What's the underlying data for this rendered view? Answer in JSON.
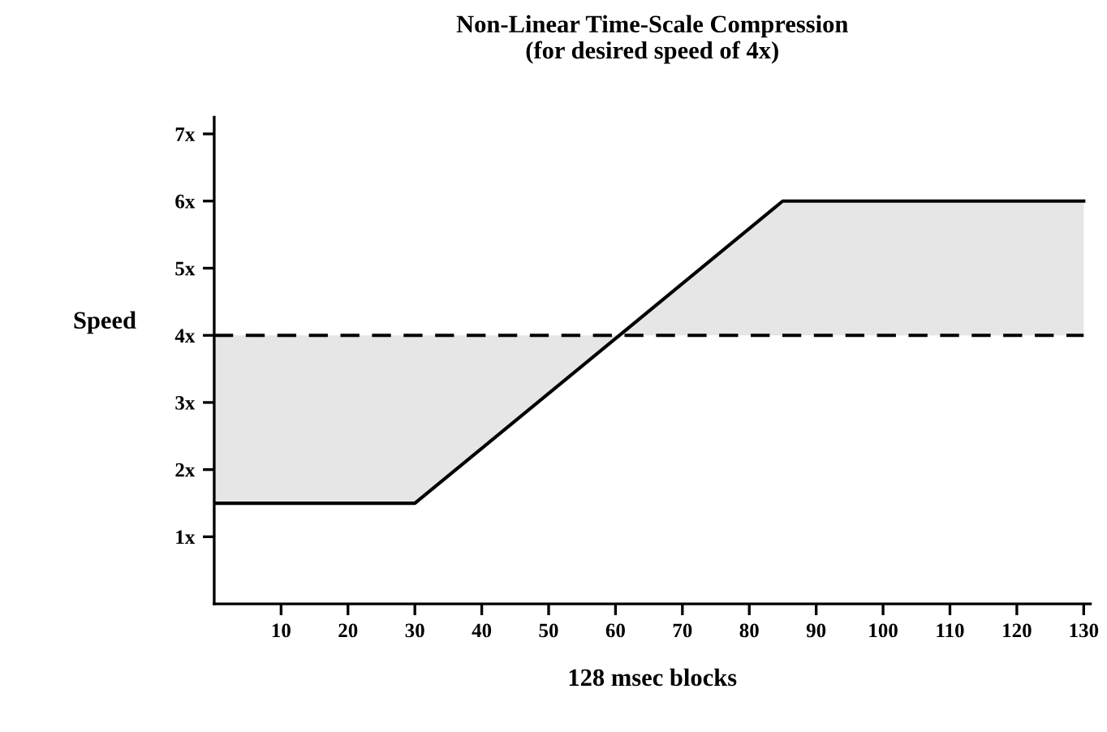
{
  "chart_data": {
    "type": "line",
    "title": "Non-Linear Time-Scale Compression\n(for desired speed of 4x)",
    "xlabel": "128 msec blocks",
    "ylabel": "Speed",
    "series": [
      {
        "color": "#000000",
        "x": [
          0,
          30,
          60.6,
          85,
          130
        ],
        "values": [
          1.5,
          1.5,
          4,
          6,
          6
        ],
        "lower": [
          1.5,
          1.5,
          4,
          4,
          4
        ],
        "upper": [
          4,
          4,
          4,
          6,
          6
        ]
      }
    ],
    "ref_lines": [
      {
        "axis": "y",
        "value": 4,
        "label": null,
        "color": "#000000",
        "line_style": "dashed"
      }
    ],
    "xlim": [
      0,
      131
    ],
    "xticks": [
      10,
      20,
      30,
      40,
      50,
      60,
      70,
      80,
      90,
      100,
      110,
      120,
      130
    ],
    "ylim": [
      0,
      7.25
    ],
    "yticks": [
      {
        "value": 1,
        "label": "1x"
      },
      {
        "value": 2,
        "label": "2x"
      },
      {
        "value": 3,
        "label": "3x"
      },
      {
        "value": 4,
        "label": "4x"
      },
      {
        "value": 5,
        "label": "5x"
      },
      {
        "value": 6,
        "label": "6x"
      },
      {
        "value": 7,
        "label": "7x"
      }
    ],
    "grid": false,
    "legend": false,
    "marker": "none",
    "line_style": "solid"
  }
}
